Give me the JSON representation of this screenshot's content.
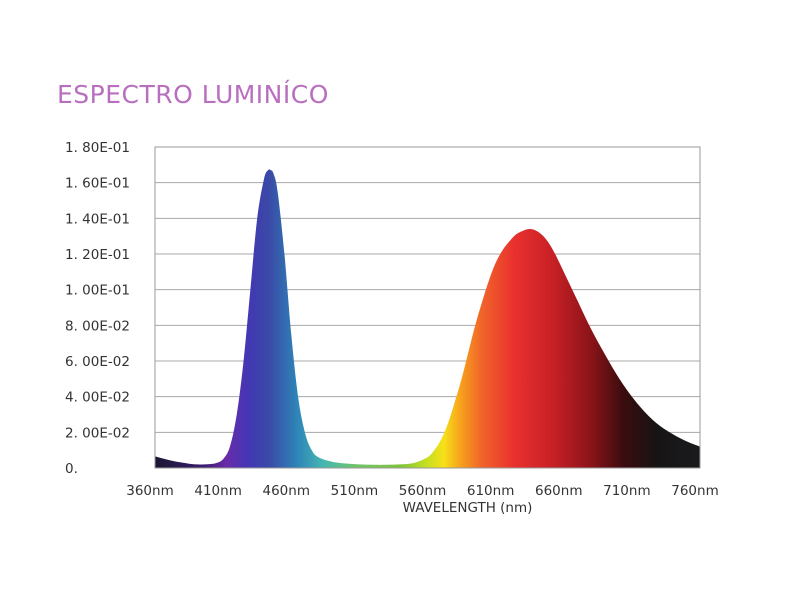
{
  "chart_data": {
    "type": "area",
    "title": "ESPECTRO LUMINÍCO",
    "xlabel": "WAVELENGTH (nm)",
    "ylabel": "",
    "xlim": [
      360,
      760
    ],
    "ylim": [
      0,
      0.18
    ],
    "grid": true,
    "x_tick_labels": [
      "360nm",
      "410nm",
      "460nm",
      "510nm",
      "560nm",
      "610nm",
      "660nm",
      "710nm",
      "760nm"
    ],
    "y_tick_labels": [
      "0.",
      "2. 00E-02",
      "4. 00E-02",
      "6. 00E-02",
      "8. 00E-02",
      "1. 00E-01",
      "1. 20E-01",
      "1. 40E-01",
      "1. 60E-01",
      "1. 80E-01"
    ],
    "series": [
      {
        "x": [
          360,
          370,
          380,
          390,
          400,
          405,
          410,
          415,
          420,
          425,
          430,
          435,
          440,
          443,
          445,
          447,
          450,
          455,
          460,
          465,
          470,
          475,
          480,
          490,
          500,
          510,
          520,
          530,
          540,
          550,
          560,
          565,
          570,
          575,
          580,
          585,
          590,
          595,
          600,
          605,
          610,
          615,
          620,
          625,
          630,
          635,
          640,
          645,
          650,
          655,
          660,
          665,
          670,
          680,
          690,
          700,
          710,
          720,
          730,
          740,
          750,
          760
        ],
        "y": [
          0.0065,
          0.0045,
          0.003,
          0.002,
          0.0022,
          0.0028,
          0.005,
          0.012,
          0.03,
          0.06,
          0.1,
          0.14,
          0.162,
          0.167,
          0.167,
          0.165,
          0.155,
          0.12,
          0.075,
          0.04,
          0.02,
          0.01,
          0.006,
          0.0035,
          0.0025,
          0.002,
          0.0018,
          0.0018,
          0.002,
          0.0028,
          0.006,
          0.01,
          0.016,
          0.025,
          0.037,
          0.05,
          0.065,
          0.08,
          0.093,
          0.105,
          0.115,
          0.122,
          0.127,
          0.131,
          0.133,
          0.134,
          0.133,
          0.13,
          0.125,
          0.118,
          0.11,
          0.102,
          0.094,
          0.078,
          0.064,
          0.051,
          0.04,
          0.031,
          0.024,
          0.019,
          0.015,
          0.012
        ]
      }
    ]
  }
}
